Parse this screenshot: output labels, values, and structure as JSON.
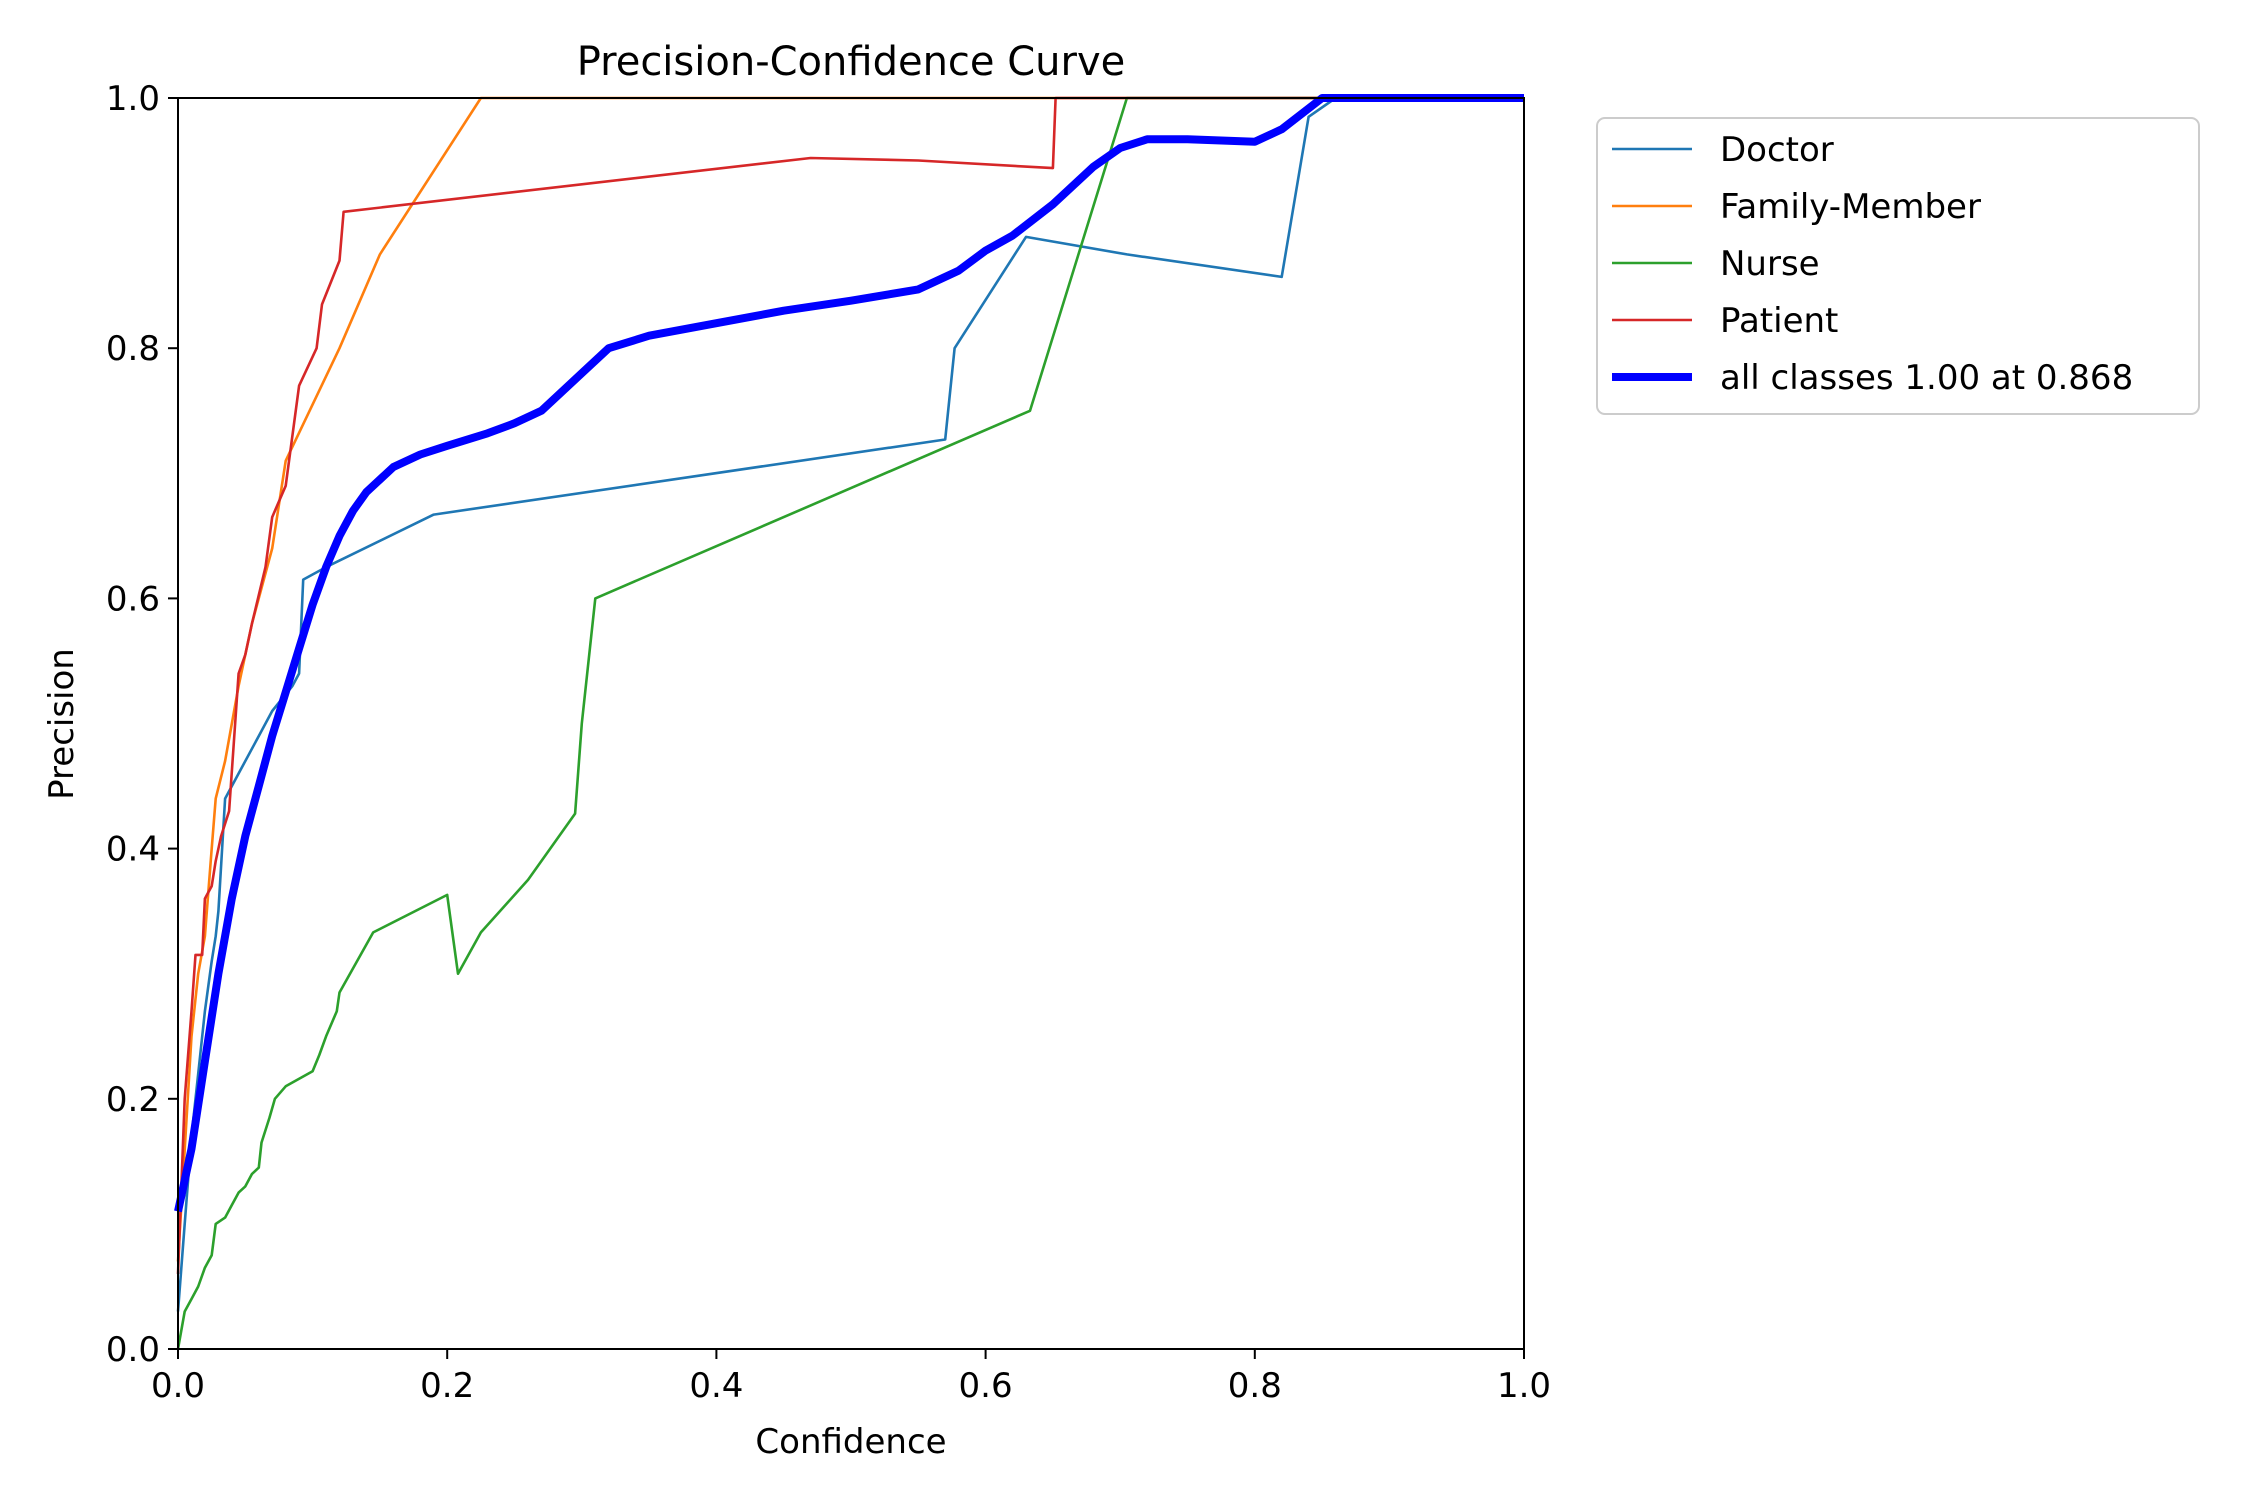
{
  "chart_data": {
    "type": "line",
    "title": "Precision-Confidence Curve",
    "xlabel": "Confidence",
    "ylabel": "Precision",
    "xlim": [
      0,
      1
    ],
    "ylim": [
      0,
      1
    ],
    "xticks": [
      "0.0",
      "0.2",
      "0.4",
      "0.6",
      "0.8",
      "1.0"
    ],
    "yticks": [
      "0.0",
      "0.2",
      "0.4",
      "0.6",
      "0.8",
      "1.0"
    ],
    "grid": false,
    "legend_position": "outside-top-right",
    "series": [
      {
        "name": "Doctor",
        "color": "#1f77b4",
        "width": "thin",
        "points": [
          [
            0.0,
            0.03
          ],
          [
            0.005,
            0.1
          ],
          [
            0.01,
            0.17
          ],
          [
            0.015,
            0.22
          ],
          [
            0.02,
            0.27
          ],
          [
            0.025,
            0.31
          ],
          [
            0.028,
            0.33
          ],
          [
            0.03,
            0.35
          ],
          [
            0.035,
            0.44
          ],
          [
            0.045,
            0.46
          ],
          [
            0.06,
            0.49
          ],
          [
            0.07,
            0.51
          ],
          [
            0.085,
            0.53
          ],
          [
            0.09,
            0.54
          ],
          [
            0.093,
            0.615
          ],
          [
            0.11,
            0.625
          ],
          [
            0.19,
            0.667
          ],
          [
            0.57,
            0.727
          ],
          [
            0.577,
            0.8
          ],
          [
            0.63,
            0.889
          ],
          [
            0.705,
            0.875
          ],
          [
            0.82,
            0.857
          ],
          [
            0.84,
            0.985
          ],
          [
            0.86,
            1.0
          ],
          [
            1.0,
            1.0
          ]
        ]
      },
      {
        "name": "Family-Member",
        "color": "#ff7f0e",
        "width": "thin",
        "points": [
          [
            0.0,
            0.07
          ],
          [
            0.01,
            0.25
          ],
          [
            0.015,
            0.3
          ],
          [
            0.02,
            0.33
          ],
          [
            0.025,
            0.4
          ],
          [
            0.028,
            0.44
          ],
          [
            0.035,
            0.47
          ],
          [
            0.045,
            0.53
          ],
          [
            0.055,
            0.58
          ],
          [
            0.07,
            0.64
          ],
          [
            0.08,
            0.71
          ],
          [
            0.12,
            0.8
          ],
          [
            0.15,
            0.875
          ],
          [
            0.225,
            1.0
          ],
          [
            1.0,
            1.0
          ]
        ]
      },
      {
        "name": "Nurse",
        "color": "#2ca02c",
        "width": "thin",
        "points": [
          [
            0.0,
            0.0
          ],
          [
            0.005,
            0.03
          ],
          [
            0.01,
            0.04
          ],
          [
            0.015,
            0.05
          ],
          [
            0.02,
            0.065
          ],
          [
            0.025,
            0.075
          ],
          [
            0.028,
            0.1
          ],
          [
            0.035,
            0.105
          ],
          [
            0.04,
            0.115
          ],
          [
            0.045,
            0.125
          ],
          [
            0.05,
            0.13
          ],
          [
            0.055,
            0.14
          ],
          [
            0.06,
            0.145
          ],
          [
            0.062,
            0.165
          ],
          [
            0.068,
            0.185
          ],
          [
            0.072,
            0.2
          ],
          [
            0.08,
            0.21
          ],
          [
            0.1,
            0.222
          ],
          [
            0.105,
            0.235
          ],
          [
            0.11,
            0.25
          ],
          [
            0.118,
            0.27
          ],
          [
            0.12,
            0.285
          ],
          [
            0.145,
            0.333
          ],
          [
            0.2,
            0.363
          ],
          [
            0.208,
            0.3
          ],
          [
            0.225,
            0.333
          ],
          [
            0.26,
            0.375
          ],
          [
            0.295,
            0.428
          ],
          [
            0.3,
            0.5
          ],
          [
            0.31,
            0.6
          ],
          [
            0.633,
            0.75
          ],
          [
            0.705,
            1.0
          ],
          [
            1.0,
            1.0
          ]
        ]
      },
      {
        "name": "Patient",
        "color": "#d62728",
        "width": "thin",
        "points": [
          [
            0.0,
            0.06
          ],
          [
            0.005,
            0.2
          ],
          [
            0.01,
            0.27
          ],
          [
            0.013,
            0.315
          ],
          [
            0.018,
            0.315
          ],
          [
            0.02,
            0.36
          ],
          [
            0.025,
            0.37
          ],
          [
            0.028,
            0.39
          ],
          [
            0.032,
            0.41
          ],
          [
            0.038,
            0.43
          ],
          [
            0.045,
            0.54
          ],
          [
            0.05,
            0.555
          ],
          [
            0.055,
            0.58
          ],
          [
            0.065,
            0.625
          ],
          [
            0.07,
            0.665
          ],
          [
            0.08,
            0.69
          ],
          [
            0.09,
            0.77
          ],
          [
            0.103,
            0.8
          ],
          [
            0.107,
            0.835
          ],
          [
            0.12,
            0.87
          ],
          [
            0.123,
            0.909
          ],
          [
            0.47,
            0.952
          ],
          [
            0.55,
            0.95
          ],
          [
            0.65,
            0.944
          ],
          [
            0.652,
            1.0
          ],
          [
            1.0,
            1.0
          ]
        ]
      },
      {
        "name": "all classes 1.00 at 0.868",
        "color": "#0000ff",
        "width": "thick",
        "points": [
          [
            0.0,
            0.11
          ],
          [
            0.01,
            0.16
          ],
          [
            0.02,
            0.23
          ],
          [
            0.03,
            0.3
          ],
          [
            0.04,
            0.36
          ],
          [
            0.05,
            0.41
          ],
          [
            0.06,
            0.45
          ],
          [
            0.07,
            0.49
          ],
          [
            0.08,
            0.525
          ],
          [
            0.09,
            0.56
          ],
          [
            0.1,
            0.595
          ],
          [
            0.11,
            0.625
          ],
          [
            0.12,
            0.65
          ],
          [
            0.13,
            0.67
          ],
          [
            0.14,
            0.685
          ],
          [
            0.16,
            0.705
          ],
          [
            0.18,
            0.715
          ],
          [
            0.2,
            0.722
          ],
          [
            0.23,
            0.732
          ],
          [
            0.25,
            0.74
          ],
          [
            0.27,
            0.75
          ],
          [
            0.3,
            0.78
          ],
          [
            0.32,
            0.8
          ],
          [
            0.35,
            0.81
          ],
          [
            0.4,
            0.82
          ],
          [
            0.45,
            0.83
          ],
          [
            0.5,
            0.838
          ],
          [
            0.55,
            0.847
          ],
          [
            0.58,
            0.862
          ],
          [
            0.6,
            0.878
          ],
          [
            0.62,
            0.89
          ],
          [
            0.65,
            0.915
          ],
          [
            0.68,
            0.945
          ],
          [
            0.7,
            0.96
          ],
          [
            0.72,
            0.967
          ],
          [
            0.75,
            0.967
          ],
          [
            0.8,
            0.965
          ],
          [
            0.82,
            0.975
          ],
          [
            0.85,
            1.0
          ],
          [
            1.0,
            1.0
          ]
        ]
      }
    ]
  }
}
